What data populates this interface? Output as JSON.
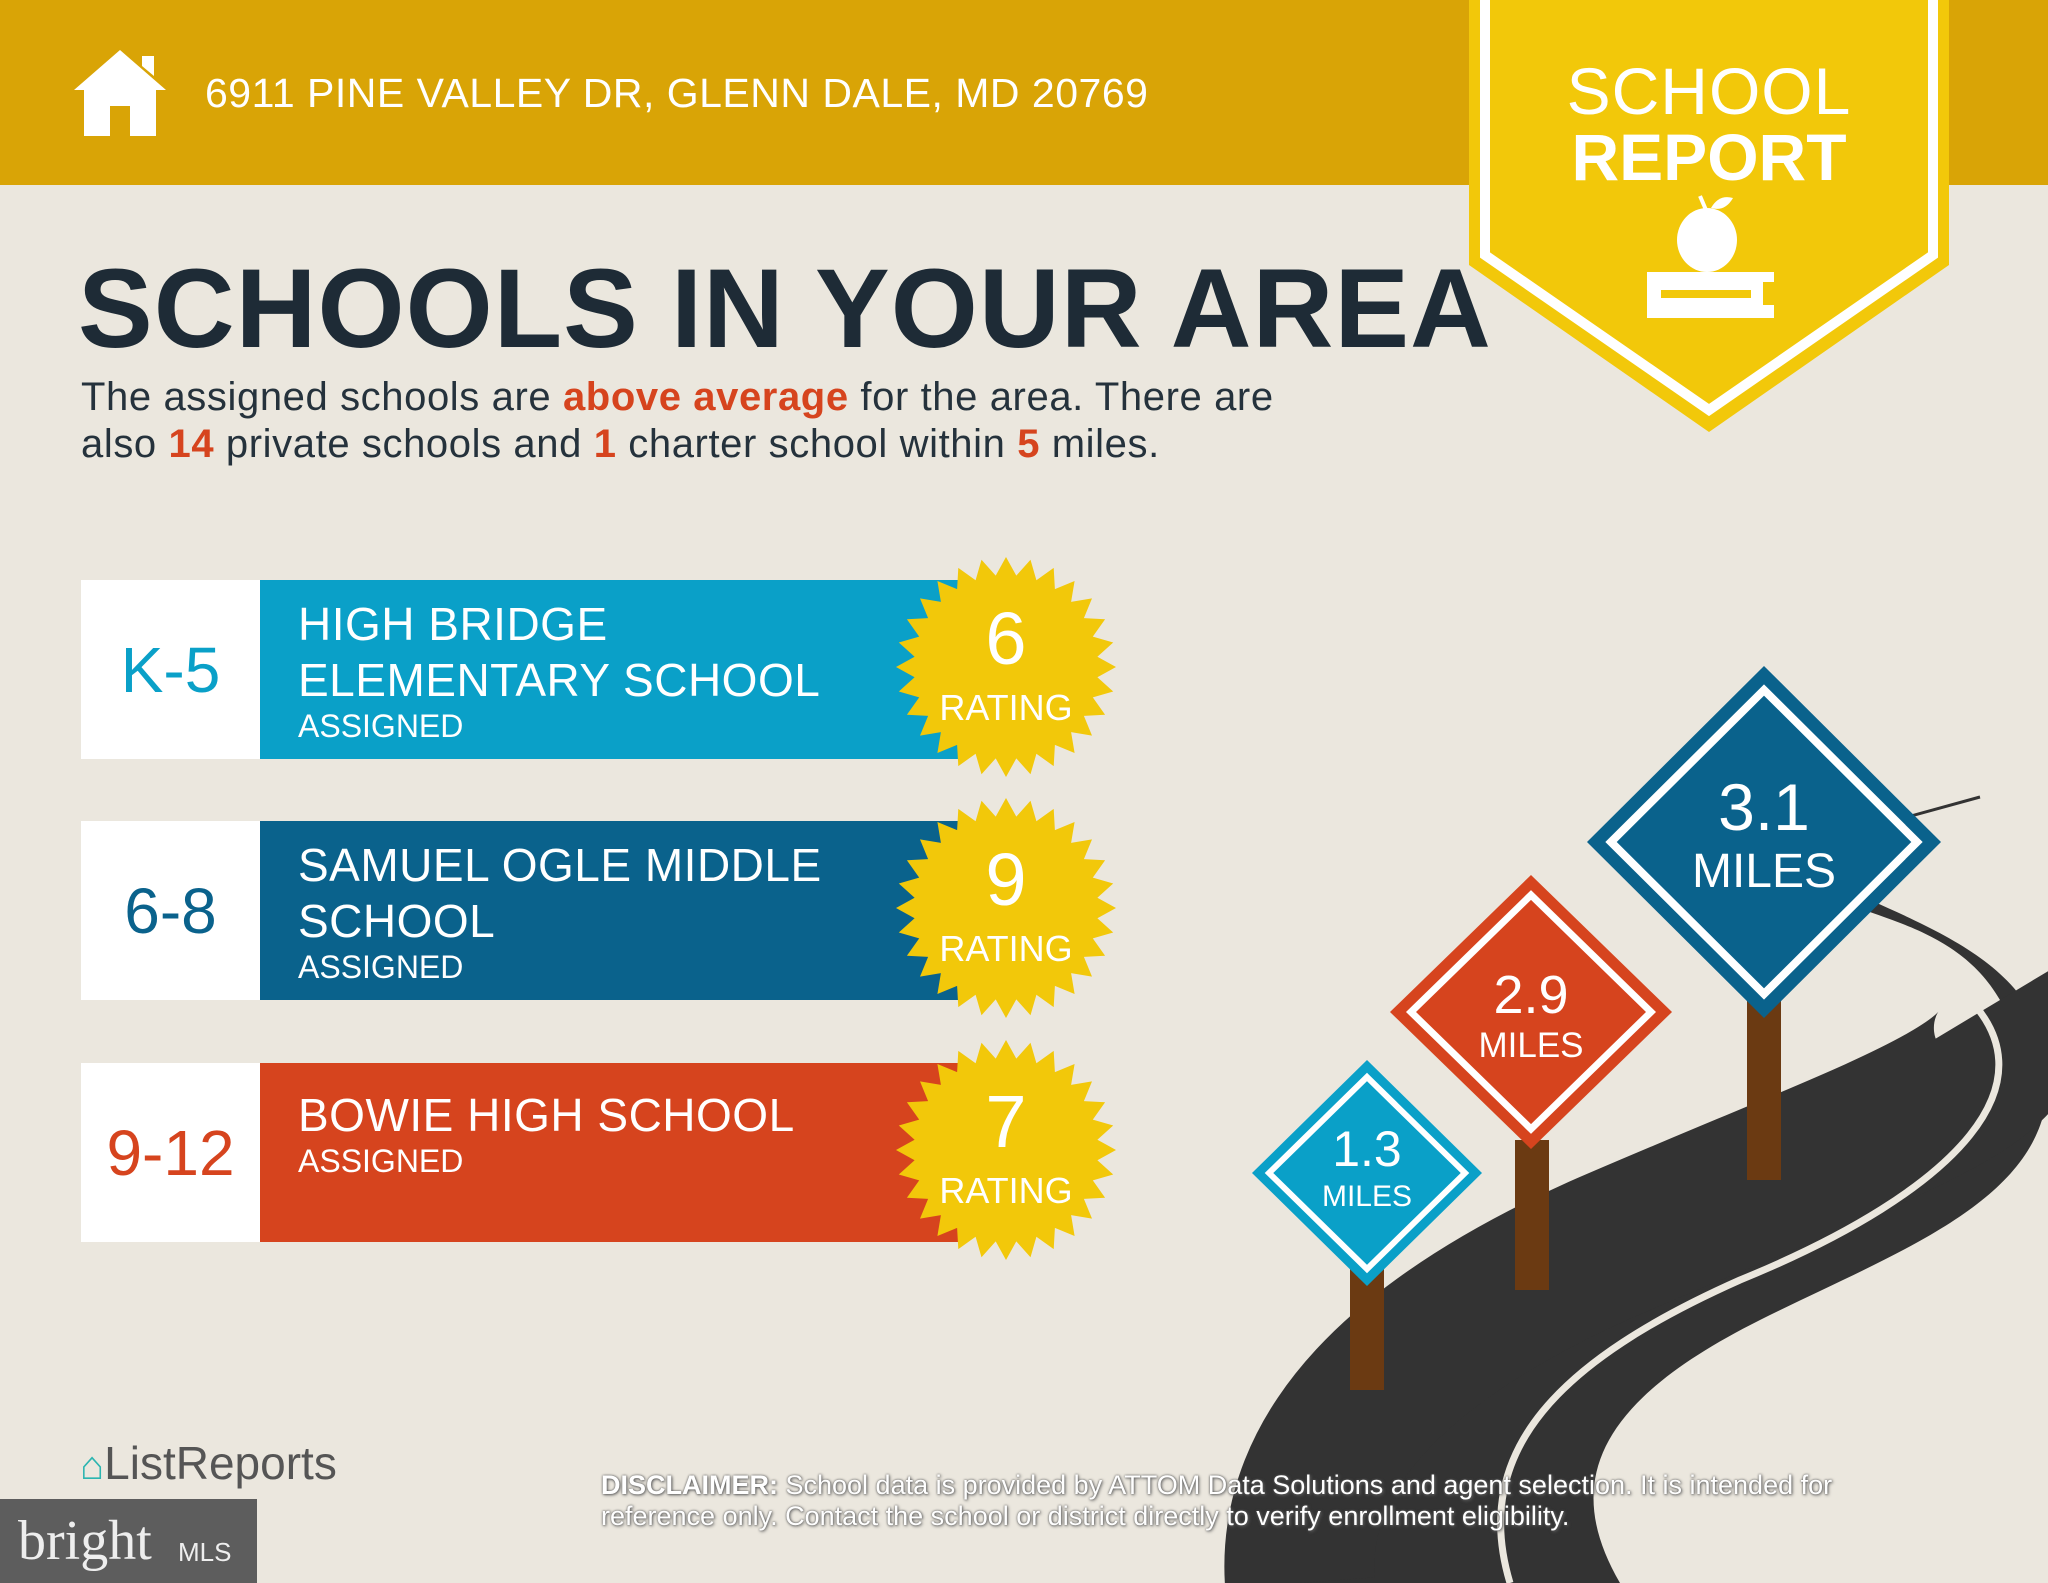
{
  "header": {
    "address": "6911 PINE VALLEY DR, GLENN DALE, MD 20769",
    "icon": "house-icon",
    "color": "#D9A406"
  },
  "badge": {
    "line1": "SCHOOL",
    "line2": "REPORT",
    "icon": "apple-on-book-icon",
    "color": "#F2C80A"
  },
  "title": "SCHOOLS IN YOUR AREA",
  "subtitle": {
    "t1": "The assigned schools are ",
    "hl1": "above average",
    "t2": " for the area. There are",
    "t3": "also ",
    "hl2": "14",
    "t4": " private schools and ",
    "hl3": "1",
    "t5": " charter school within ",
    "hl4": "5",
    "t6": " miles."
  },
  "schools": [
    {
      "grade": "K-5",
      "name1": "HIGH BRIDGE",
      "name2": "ELEMENTARY SCHOOL",
      "status": "ASSIGNED",
      "rating": "6",
      "rating_label": "RATING",
      "color": "#0AA0C8"
    },
    {
      "grade": "6-8",
      "name1": "SAMUEL OGLE MIDDLE",
      "name2": "SCHOOL",
      "status": "ASSIGNED",
      "rating": "9",
      "rating_label": "RATING",
      "color": "#0A628C"
    },
    {
      "grade": "9-12",
      "name1": "BOWIE HIGH SCHOOL",
      "name2": "",
      "status": "ASSIGNED",
      "rating": "7",
      "rating_label": "RATING",
      "color": "#D6441E"
    }
  ],
  "signs": [
    {
      "value": "1.3",
      "unit": "MILES",
      "color": "#0AA0C8"
    },
    {
      "value": "2.9",
      "unit": "MILES",
      "color": "#D6441E"
    },
    {
      "value": "3.1",
      "unit": "MILES",
      "color": "#0A628C"
    }
  ],
  "footer": {
    "disclaimer_label": "DISCLAIMER:",
    "disclaimer_text": " School data is provided by ATTOM Data Solutions and agent selection. It is intended for reference only. Contact the school or district directly to verify enrollment eligibility.",
    "listreports": "ListReports",
    "bright": "bright",
    "mls": "MLS"
  }
}
